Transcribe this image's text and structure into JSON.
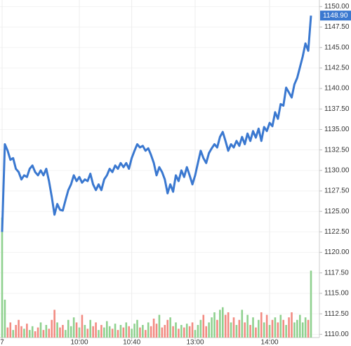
{
  "chart_data": {
    "type": "line",
    "categories": [
      "7",
      null,
      null,
      null,
      null,
      null,
      null,
      null,
      null,
      null,
      null,
      null,
      null,
      null,
      null,
      null,
      null,
      null,
      null,
      null,
      null,
      null,
      null,
      null,
      null,
      null,
      null,
      null,
      "10:00",
      null,
      null,
      null,
      null,
      null,
      null,
      null,
      null,
      null,
      null,
      null,
      null,
      null,
      null,
      null,
      null,
      null,
      null,
      "10:40",
      null,
      null,
      null,
      null,
      null,
      null,
      null,
      null,
      null,
      null,
      null,
      null,
      null,
      null,
      null,
      null,
      null,
      null,
      null,
      null,
      null,
      null,
      "13:00",
      null,
      null,
      null,
      null,
      null,
      null,
      null,
      null,
      null,
      null,
      null,
      null,
      null,
      null,
      null,
      null,
      null,
      null,
      null,
      null,
      null,
      null,
      null,
      null,
      null,
      null,
      "14:00",
      null,
      null,
      null,
      null,
      null,
      null,
      null,
      null,
      null,
      null,
      null,
      null,
      null,
      null,
      null
    ],
    "series": [
      {
        "color": "#3a78d0",
        "last_value_label": "1148.90",
        "values": [
          1122.5,
          1133.2,
          1132.4,
          1131.3,
          1131.5,
          1130.2,
          1129.8,
          1128.9,
          1129.4,
          1129.2,
          1130.2,
          1130.6,
          1129.8,
          1129.4,
          1130.0,
          1129.4,
          1130.2,
          1128.7,
          1126.8,
          1124.6,
          1125.9,
          1125.2,
          1125.1,
          1126.4,
          1127.6,
          1128.3,
          1129.4,
          1128.7,
          1129.2,
          1128.5,
          1128.9,
          1128.7,
          1129.6,
          1128.3,
          1127.6,
          1128.3,
          1127.6,
          1128.9,
          1129.4,
          1130.2,
          1129.8,
          1130.6,
          1130.2,
          1130.9,
          1130.4,
          1130.9,
          1130.2,
          1131.5,
          1132.4,
          1133.2,
          1132.8,
          1133.0,
          1132.4,
          1132.7,
          1131.9,
          1130.9,
          1129.4,
          1130.4,
          1129.8,
          1128.9,
          1127.2,
          1128.3,
          1127.4,
          1129.4,
          1128.7,
          1130.0,
          1129.2,
          1130.4,
          1129.4,
          1128.3,
          1129.4,
          1130.9,
          1132.4,
          1131.5,
          1130.9,
          1132.1,
          1132.7,
          1133.2,
          1132.8,
          1134.1,
          1134.7,
          1133.6,
          1132.4,
          1133.2,
          1132.8,
          1133.6,
          1133.0,
          1134.1,
          1133.2,
          1134.5,
          1133.6,
          1134.8,
          1134.0,
          1135.1,
          1133.6,
          1135.3,
          1134.8,
          1135.8,
          1135.4,
          1137.1,
          1136.3,
          1138.1,
          1137.9,
          1140.1,
          1139.5,
          1138.9,
          1140.5,
          1141.3,
          1142.6,
          1143.9,
          1145.5,
          1144.6,
          1148.9
        ]
      },
      {
        "type": "bar",
        "axis": "y2",
        "up_color": "#8fd18f",
        "down_color": "#f28b82",
        "values": [
          95,
          30,
          8,
          12,
          6,
          10,
          14,
          9,
          7,
          11,
          6,
          9,
          5,
          8,
          12,
          6,
          10,
          7,
          14,
          22,
          12,
          8,
          10,
          6,
          14,
          9,
          16,
          12,
          8,
          18,
          10,
          7,
          14,
          9,
          12,
          6,
          10,
          8,
          13,
          9,
          7,
          11,
          6,
          10,
          8,
          12,
          9,
          7,
          11,
          14,
          8,
          10,
          6,
          12,
          9,
          15,
          11,
          18,
          8,
          10,
          14,
          16,
          9,
          12,
          7,
          10,
          8,
          11,
          9,
          12,
          6,
          10,
          14,
          18,
          9,
          12,
          16,
          20,
          14,
          22,
          24,
          18,
          20,
          12,
          16,
          10,
          14,
          22,
          12,
          18,
          10,
          16,
          8,
          14,
          20,
          12,
          18,
          10,
          14,
          16,
          12,
          18,
          14,
          10,
          16,
          20,
          12,
          14,
          18,
          12,
          16,
          14,
          53
        ]
      }
    ],
    "ylim": [
      1109.6,
      1150.8
    ],
    "yticks": [
      {
        "value": 1110,
        "label": "1110.00"
      },
      {
        "value": 1112.5,
        "label": "1112.50"
      },
      {
        "value": 1115,
        "label": "1115.00"
      },
      {
        "value": 1117.5,
        "label": "1117.50"
      },
      {
        "value": 1120,
        "label": "1120.00"
      },
      {
        "value": 1122.5,
        "label": "1122.50"
      },
      {
        "value": 1125,
        "label": "1125.00"
      },
      {
        "value": 1127.5,
        "label": "1127.50"
      },
      {
        "value": 1130,
        "label": "1130.00"
      },
      {
        "value": 1132.5,
        "label": "1132.50"
      },
      {
        "value": 1135,
        "label": "1135.00"
      },
      {
        "value": 1137.5,
        "label": "1137.50"
      },
      {
        "value": 1140,
        "label": "1140.00"
      },
      {
        "value": 1142.5,
        "label": "1142.50"
      },
      {
        "value": 1145,
        "label": "1145.00"
      },
      {
        "value": 1147.5,
        "label": "1147.50"
      },
      {
        "value": 1150,
        "label": "1150.00"
      }
    ],
    "y2lim": [
      0,
      100
    ],
    "grid": true
  }
}
